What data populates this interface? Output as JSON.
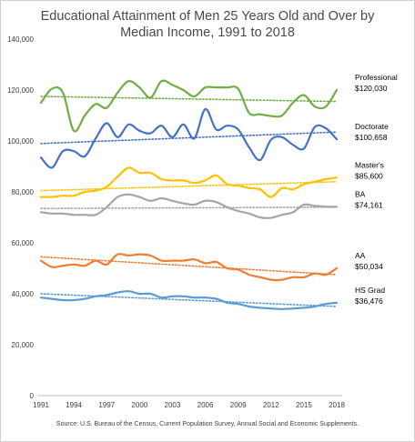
{
  "chart_data": {
    "type": "line",
    "title_line1": "Educational Attainment of Men 25 Years Old and Over by",
    "title_line2": "Median Income, 1991 to 2018",
    "source": "Source: U.S. Bureau of the Census, Current Population Survey, Annual Social and Economic Supplements.",
    "xlabel": "",
    "ylabel": "",
    "ylim": [
      0,
      140000
    ],
    "xlim": [
      1991,
      2018
    ],
    "y_ticks": [
      {
        "v": 0,
        "label": "0"
      },
      {
        "v": 20000,
        "label": "20,000"
      },
      {
        "v": 40000,
        "label": "40,000"
      },
      {
        "v": 60000,
        "label": "60,000"
      },
      {
        "v": 80000,
        "label": "80,000"
      },
      {
        "v": 100000,
        "label": "100,000"
      },
      {
        "v": 120000,
        "label": "120,000"
      },
      {
        "v": 140000,
        "label": "140,000"
      }
    ],
    "x_ticks": [
      {
        "v": 1991,
        "label": "1991"
      },
      {
        "v": 1994,
        "label": "1994"
      },
      {
        "v": 1997,
        "label": "1997"
      },
      {
        "v": 2000,
        "label": "2000"
      },
      {
        "v": 2003,
        "label": "2003"
      },
      {
        "v": 2006,
        "label": "2006"
      },
      {
        "v": 2009,
        "label": "2009"
      },
      {
        "v": 2012,
        "label": "2012"
      },
      {
        "v": 2015,
        "label": "2015"
      },
      {
        "v": 2018,
        "label": "2018"
      }
    ],
    "grid": false,
    "legend": "none",
    "x": [
      1991,
      1992,
      1993,
      1994,
      1995,
      1996,
      1997,
      1998,
      1999,
      2000,
      2001,
      2002,
      2003,
      2004,
      2005,
      2006,
      2007,
      2008,
      2009,
      2010,
      2011,
      2012,
      2013,
      2014,
      2015,
      2016,
      2017,
      2018
    ],
    "series": [
      {
        "name": "Professional",
        "end_label": "$120,030",
        "color": "#70ad47",
        "values": [
          115000,
          120500,
          119000,
          104000,
          110000,
          114500,
          113000,
          119000,
          123500,
          121000,
          117000,
          123500,
          122000,
          120000,
          117500,
          121000,
          121000,
          121000,
          120500,
          111000,
          110500,
          109800,
          110000,
          115000,
          118000,
          113500,
          113500,
          120030
        ],
        "trend": [
          117500,
          115500
        ]
      },
      {
        "name": "Doctorate",
        "end_label": "$100,658",
        "color": "#4472c4",
        "values": [
          93500,
          89500,
          96000,
          96000,
          94000,
          101000,
          107000,
          101500,
          106500,
          104000,
          103000,
          106000,
          101500,
          106500,
          101000,
          112500,
          104500,
          106000,
          104500,
          97500,
          92500,
          100500,
          101500,
          98500,
          97000,
          105500,
          105000,
          100658
        ],
        "trend": [
          99000,
          103500
        ]
      },
      {
        "name": "Master's",
        "end_label": "$85,600",
        "color": "#ffc000",
        "values": [
          78000,
          78000,
          78500,
          78500,
          80000,
          80500,
          82000,
          86000,
          89500,
          87500,
          87500,
          85000,
          84500,
          84500,
          83500,
          84500,
          86500,
          83000,
          82500,
          81500,
          81000,
          78000,
          81500,
          81000,
          83000,
          84000,
          85000,
          85600
        ],
        "trend": [
          80500,
          84000
        ]
      },
      {
        "name": "BA",
        "end_label": "$74,161",
        "color": "#a5a5a5",
        "values": [
          72000,
          71500,
          71500,
          71000,
          71000,
          71000,
          74000,
          78000,
          79000,
          78000,
          76500,
          77500,
          76500,
          75500,
          75000,
          76500,
          76000,
          74000,
          72500,
          71500,
          70000,
          69800,
          71000,
          72000,
          75000,
          74500,
          74200,
          74161
        ],
        "trend": [
          73500,
          74000
        ]
      },
      {
        "name": "AA",
        "end_label": "$50,034",
        "color": "#ed7d31",
        "values": [
          53000,
          50500,
          51000,
          51500,
          51000,
          53000,
          51500,
          55500,
          55000,
          55500,
          55000,
          53000,
          53000,
          53000,
          53500,
          52000,
          52500,
          50000,
          49500,
          47500,
          46500,
          45500,
          45500,
          46500,
          46500,
          48000,
          47500,
          50034
        ],
        "trend": [
          54500,
          47500
        ]
      },
      {
        "name": "HS Grad",
        "end_label": "$36,476",
        "color": "#5b9bd5",
        "values": [
          38500,
          38000,
          37500,
          37500,
          38000,
          39000,
          39500,
          40500,
          41000,
          40000,
          40000,
          38500,
          39000,
          39000,
          38500,
          38500,
          38000,
          36500,
          36000,
          35000,
          34500,
          34200,
          34000,
          34200,
          34500,
          35000,
          36000,
          36476
        ],
        "trend": [
          40000,
          35000
        ]
      }
    ]
  }
}
